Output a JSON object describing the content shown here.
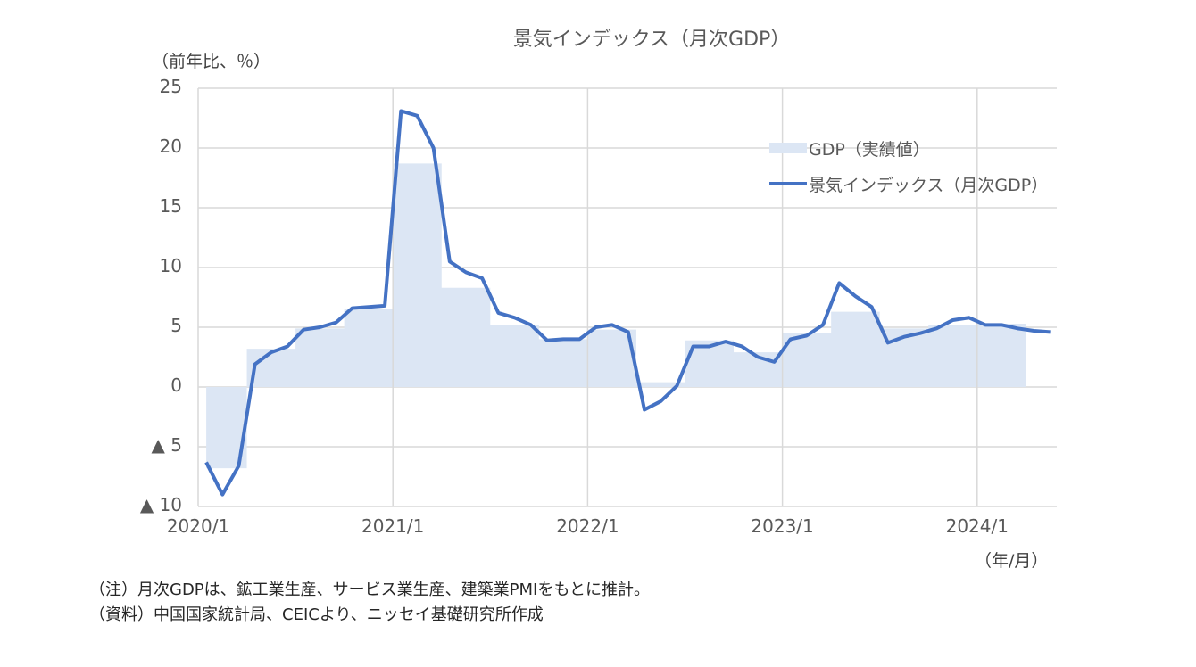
{
  "title": "景気インデックス（月次GDP）",
  "y_unit_label": "（前年比、％）",
  "x_unit_label": "（年/月）",
  "legend": {
    "area_label": "GDP（実績値）",
    "line_label": "景気インデックス（月次GDP）"
  },
  "y_ticks": [
    {
      "value": 25,
      "label": "25"
    },
    {
      "value": 20,
      "label": "20"
    },
    {
      "value": 15,
      "label": "15"
    },
    {
      "value": 10,
      "label": "10"
    },
    {
      "value": 5,
      "label": "5"
    },
    {
      "value": 0,
      "label": "0"
    },
    {
      "value": -5,
      "label": "▲ 5"
    },
    {
      "value": -10,
      "label": "▲ 10"
    }
  ],
  "x_ticks": [
    "2020/1",
    "2021/1",
    "2022/1",
    "2023/1",
    "2024/1"
  ],
  "notes": [
    "（注）月次GDPは、鉱工業生産、サービス業生産、建築業PMIをもとに推計。",
    "（資料）中国国家統計局、CEICより、ニッセイ基礎研究所作成"
  ],
  "colors": {
    "line": "#4472c4",
    "area": "#dce6f4",
    "grid": "#d9d9d9"
  },
  "chart_data": {
    "type": "line",
    "title": "景気インデックス（月次GDP）",
    "xlabel": "（年/月）",
    "ylabel": "（前年比、％）",
    "ylim": [
      -10,
      25
    ],
    "grid": true,
    "legend_position": "upper right inside",
    "x": [
      "2020/1",
      "2020/2",
      "2020/3",
      "2020/4",
      "2020/5",
      "2020/6",
      "2020/7",
      "2020/8",
      "2020/9",
      "2020/10",
      "2020/11",
      "2020/12",
      "2021/1",
      "2021/2",
      "2021/3",
      "2021/4",
      "2021/5",
      "2021/6",
      "2021/7",
      "2021/8",
      "2021/9",
      "2021/10",
      "2021/11",
      "2021/12",
      "2022/1",
      "2022/2",
      "2022/3",
      "2022/4",
      "2022/5",
      "2022/6",
      "2022/7",
      "2022/8",
      "2022/9",
      "2022/10",
      "2022/11",
      "2022/12",
      "2023/1",
      "2023/2",
      "2023/3",
      "2023/4",
      "2023/5",
      "2023/6",
      "2023/7",
      "2023/8",
      "2023/9",
      "2023/10",
      "2023/11",
      "2023/12",
      "2024/1",
      "2024/2",
      "2024/3",
      "2024/4",
      "2024/5"
    ],
    "series": [
      {
        "name": "景気インデックス（月次GDP）",
        "type": "line",
        "values": [
          -6.3,
          -9.0,
          -6.6,
          1.9,
          2.9,
          3.4,
          4.8,
          5.0,
          5.4,
          6.6,
          6.7,
          6.8,
          23.1,
          22.7,
          20.0,
          10.5,
          9.6,
          9.1,
          6.2,
          5.8,
          5.2,
          3.9,
          4.0,
          4.0,
          5.0,
          5.2,
          4.6,
          -1.9,
          -1.2,
          0.1,
          3.4,
          3.4,
          3.8,
          3.4,
          2.5,
          2.1,
          4.0,
          4.3,
          5.2,
          8.7,
          7.6,
          6.7,
          3.7,
          4.2,
          4.5,
          4.9,
          5.6,
          5.8,
          5.2,
          5.2,
          4.9,
          4.7,
          4.6
        ]
      },
      {
        "name": "GDP（実績値）",
        "type": "area",
        "quarters": [
          "2020Q1",
          "2020Q2",
          "2020Q3",
          "2020Q4",
          "2021Q1",
          "2021Q2",
          "2021Q3",
          "2021Q4",
          "2022Q1",
          "2022Q2",
          "2022Q3",
          "2022Q4",
          "2023Q1",
          "2023Q2",
          "2023Q3",
          "2023Q4",
          "2024Q1"
        ],
        "values": [
          -6.8,
          3.2,
          4.9,
          6.5,
          18.7,
          8.3,
          5.2,
          4.0,
          4.8,
          0.4,
          3.9,
          2.9,
          4.5,
          6.3,
          4.9,
          5.2,
          5.3
        ]
      }
    ]
  }
}
